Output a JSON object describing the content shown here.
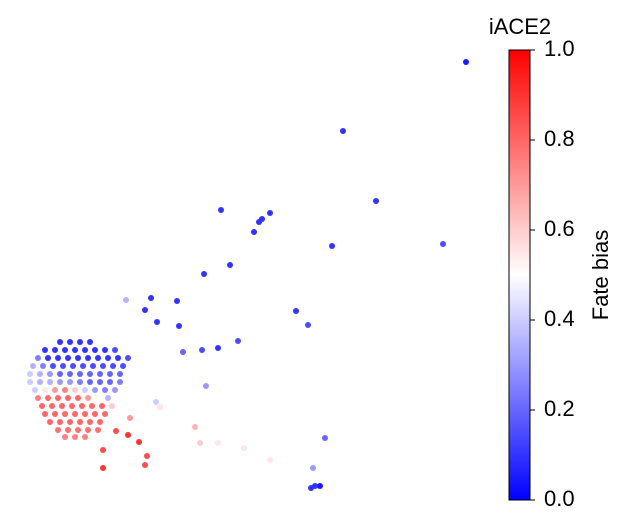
{
  "chart_data": {
    "type": "scatter",
    "title": "iACE2",
    "colorbar_label": "Fate bias",
    "colormap": [
      "#0000ff",
      "#ffffff",
      "#ff0000"
    ],
    "clim": [
      0,
      1
    ],
    "cticks": [
      {
        "value": 0,
        "label": "0.0"
      },
      {
        "value": 0.2,
        "label": "0.2"
      },
      {
        "value": 0.4,
        "label": "0.4"
      },
      {
        "value": 0.6,
        "label": "0.6"
      },
      {
        "value": 0.8,
        "label": "0.8"
      },
      {
        "value": 1,
        "label": "1.0"
      }
    ],
    "xlim": [
      0,
      500
    ],
    "ylim": [
      0,
      500
    ],
    "x": [
      466,
      343,
      376,
      221,
      270,
      262,
      259,
      254,
      332,
      443,
      230,
      204,
      151,
      126,
      177,
      296,
      145,
      308,
      179,
      157,
      238,
      218,
      202,
      183,
      206,
      156,
      148,
      160,
      195,
      200,
      218,
      244,
      272,
      325,
      270,
      313,
      315,
      320,
      311,
      147,
      145,
      139,
      128,
      103,
      103,
      116,
      130,
      60,
      70,
      80,
      90,
      45,
      55,
      65,
      75,
      85,
      95,
      105,
      115,
      38,
      48,
      58,
      68,
      78,
      88,
      98,
      108,
      118,
      128,
      33,
      43,
      53,
      63,
      73,
      83,
      93,
      103,
      113,
      123,
      30,
      40,
      50,
      60,
      70,
      80,
      90,
      100,
      110,
      120,
      30,
      40,
      50,
      60,
      70,
      80,
      90,
      100,
      110,
      120,
      35,
      45,
      55,
      65,
      75,
      85,
      95,
      105,
      115,
      38,
      48,
      58,
      68,
      78,
      88,
      98,
      108,
      42,
      52,
      62,
      72,
      82,
      92,
      102,
      112,
      45,
      55,
      65,
      75,
      85,
      95,
      105,
      50,
      60,
      70,
      80,
      90,
      100,
      58,
      68,
      78,
      88,
      98,
      65,
      75,
      85
    ],
    "y": [
      438,
      369,
      299,
      290,
      287,
      281,
      278,
      268,
      254,
      256,
      235,
      226,
      202,
      200,
      199,
      189,
      190,
      175,
      174,
      178,
      159,
      152,
      150,
      148,
      114,
      98,
      93,
      93,
      73,
      57,
      57,
      52,
      59,
      62,
      40,
      32,
      14,
      14,
      12,
      44,
      35,
      58,
      65,
      50,
      32,
      69,
      82,
      158,
      158,
      158,
      158,
      150,
      150,
      150,
      150,
      150,
      150,
      150,
      150,
      142,
      142,
      142,
      142,
      142,
      142,
      142,
      142,
      142,
      142,
      134,
      134,
      134,
      134,
      134,
      134,
      134,
      134,
      134,
      134,
      126,
      126,
      126,
      126,
      126,
      126,
      126,
      126,
      126,
      126,
      118,
      118,
      118,
      118,
      118,
      118,
      118,
      118,
      118,
      118,
      110,
      110,
      110,
      110,
      110,
      110,
      110,
      110,
      110,
      102,
      102,
      102,
      102,
      102,
      102,
      102,
      102,
      94,
      94,
      94,
      94,
      94,
      94,
      94,
      94,
      86,
      86,
      86,
      86,
      86,
      86,
      86,
      78,
      78,
      78,
      78,
      78,
      78,
      70,
      70,
      70,
      70,
      70,
      63,
      63,
      63
    ],
    "values": [
      0.05,
      0.1,
      0.1,
      0.1,
      0.1,
      0.1,
      0.1,
      0.1,
      0.1,
      0.15,
      0.1,
      0.1,
      0.1,
      0.35,
      0.1,
      0.1,
      0.1,
      0.15,
      0.1,
      0.1,
      0.15,
      0.1,
      0.15,
      0.2,
      0.3,
      0.4,
      0.5,
      0.55,
      0.65,
      0.6,
      0.55,
      0.55,
      0.5,
      0.2,
      0.55,
      0.3,
      0.1,
      0.05,
      0.1,
      0.85,
      0.85,
      0.9,
      0.9,
      0.85,
      0.9,
      0.85,
      0.7,
      0.1,
      0.1,
      0.1,
      0.1,
      0.1,
      0.1,
      0.1,
      0.1,
      0.1,
      0.1,
      0.1,
      0.15,
      0.25,
      0.1,
      0.1,
      0.1,
      0.1,
      0.1,
      0.1,
      0.1,
      0.1,
      0.15,
      0.35,
      0.25,
      0.15,
      0.15,
      0.15,
      0.15,
      0.15,
      0.15,
      0.15,
      0.15,
      0.4,
      0.35,
      0.3,
      0.2,
      0.2,
      0.2,
      0.2,
      0.2,
      0.2,
      0.2,
      0.4,
      0.35,
      0.35,
      0.3,
      0.3,
      0.25,
      0.2,
      0.2,
      0.2,
      0.25,
      0.4,
      0.55,
      0.7,
      0.75,
      0.6,
      0.4,
      0.3,
      0.25,
      0.3,
      0.75,
      0.8,
      0.8,
      0.8,
      0.8,
      0.7,
      0.5,
      0.35,
      0.8,
      0.8,
      0.8,
      0.8,
      0.8,
      0.8,
      0.8,
      0.6,
      0.8,
      0.8,
      0.8,
      0.8,
      0.8,
      0.8,
      0.8,
      0.8,
      0.8,
      0.8,
      0.8,
      0.8,
      0.8,
      0.78,
      0.78,
      0.78,
      0.78,
      0.78,
      0.75,
      0.75,
      0.75
    ]
  }
}
